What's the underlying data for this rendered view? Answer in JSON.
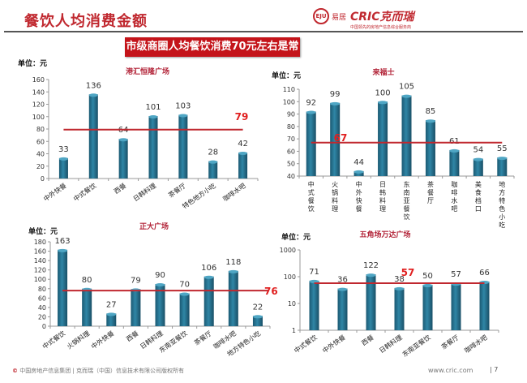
{
  "header": {
    "title": "餐饮人均消费金额",
    "banner": "市级商圈人均餐饮消费70元左右是常态",
    "logo_eju": "EJU",
    "logo_eju_text": "易居",
    "logo_cric": "CRIC克而瑞",
    "logo_cric_sub": "中国领先的房地产信息综合服务商"
  },
  "footer": {
    "copyright": "中国房地产信息集团 | 克而瑞（中国）信息技术有限公司版权所有",
    "url": "www.cric.com",
    "page": "7"
  },
  "colors": {
    "bar": "#256f8c",
    "average_line": "#c0282f",
    "title": "#c0282f"
  },
  "chart_data": [
    {
      "type": "bar",
      "title": "港汇恒隆广场",
      "unit_label": "单位：元",
      "categories": [
        "中外快餐",
        "中式餐饮",
        "西餐",
        "日韩料理",
        "茶餐厅",
        "特色地方小吃",
        "咖啡水吧"
      ],
      "values": [
        33,
        136,
        64,
        101,
        103,
        28,
        42
      ],
      "average": 79,
      "ylim": [
        0,
        160
      ],
      "yticks": [
        0,
        20,
        40,
        60,
        80,
        100,
        120,
        140,
        160
      ],
      "scale": "linear",
      "grid": false
    },
    {
      "type": "bar",
      "title": "来福士",
      "unit_label": "单位：元",
      "categories": [
        "中式餐饮",
        "火锅料理",
        "中外快餐",
        "日韩料理",
        "东南亚餐饮",
        "茶餐厅",
        "咖啡水吧",
        "美食档口",
        "地方特色小吃"
      ],
      "values": [
        92,
        99,
        44,
        100,
        105,
        85,
        61,
        54,
        55
      ],
      "average": 67,
      "ylim": [
        40,
        110
      ],
      "yticks": [
        40,
        50,
        60,
        70,
        80,
        90,
        100,
        110
      ],
      "scale": "linear",
      "grid": false
    },
    {
      "type": "bar",
      "title": "正大广场",
      "unit_label": "单位：元",
      "categories": [
        "中式餐饮",
        "火锅料理",
        "中外快餐",
        "西餐",
        "日韩料理",
        "东南亚餐饮",
        "茶餐厅",
        "咖啡水吧",
        "地方特色小吃"
      ],
      "values": [
        163,
        80,
        27,
        79,
        90,
        70,
        106,
        118,
        22
      ],
      "average": 76,
      "ylim": [
        0,
        180
      ],
      "yticks": [
        0,
        20,
        40,
        60,
        80,
        100,
        120,
        140,
        160,
        180
      ],
      "scale": "linear",
      "grid": false
    },
    {
      "type": "bar",
      "title": "五角场万达广场",
      "unit_label": "单位：元",
      "categories": [
        "中式餐饮",
        "中外快餐",
        "西餐",
        "日韩料理",
        "东南亚餐饮",
        "茶餐厅",
        "咖啡水吧"
      ],
      "values": [
        71,
        36,
        122,
        38,
        50,
        57,
        66
      ],
      "average": 57,
      "ylim": [
        1,
        1000
      ],
      "yticks": [
        1,
        10,
        100,
        1000
      ],
      "scale": "log",
      "grid": false
    }
  ]
}
